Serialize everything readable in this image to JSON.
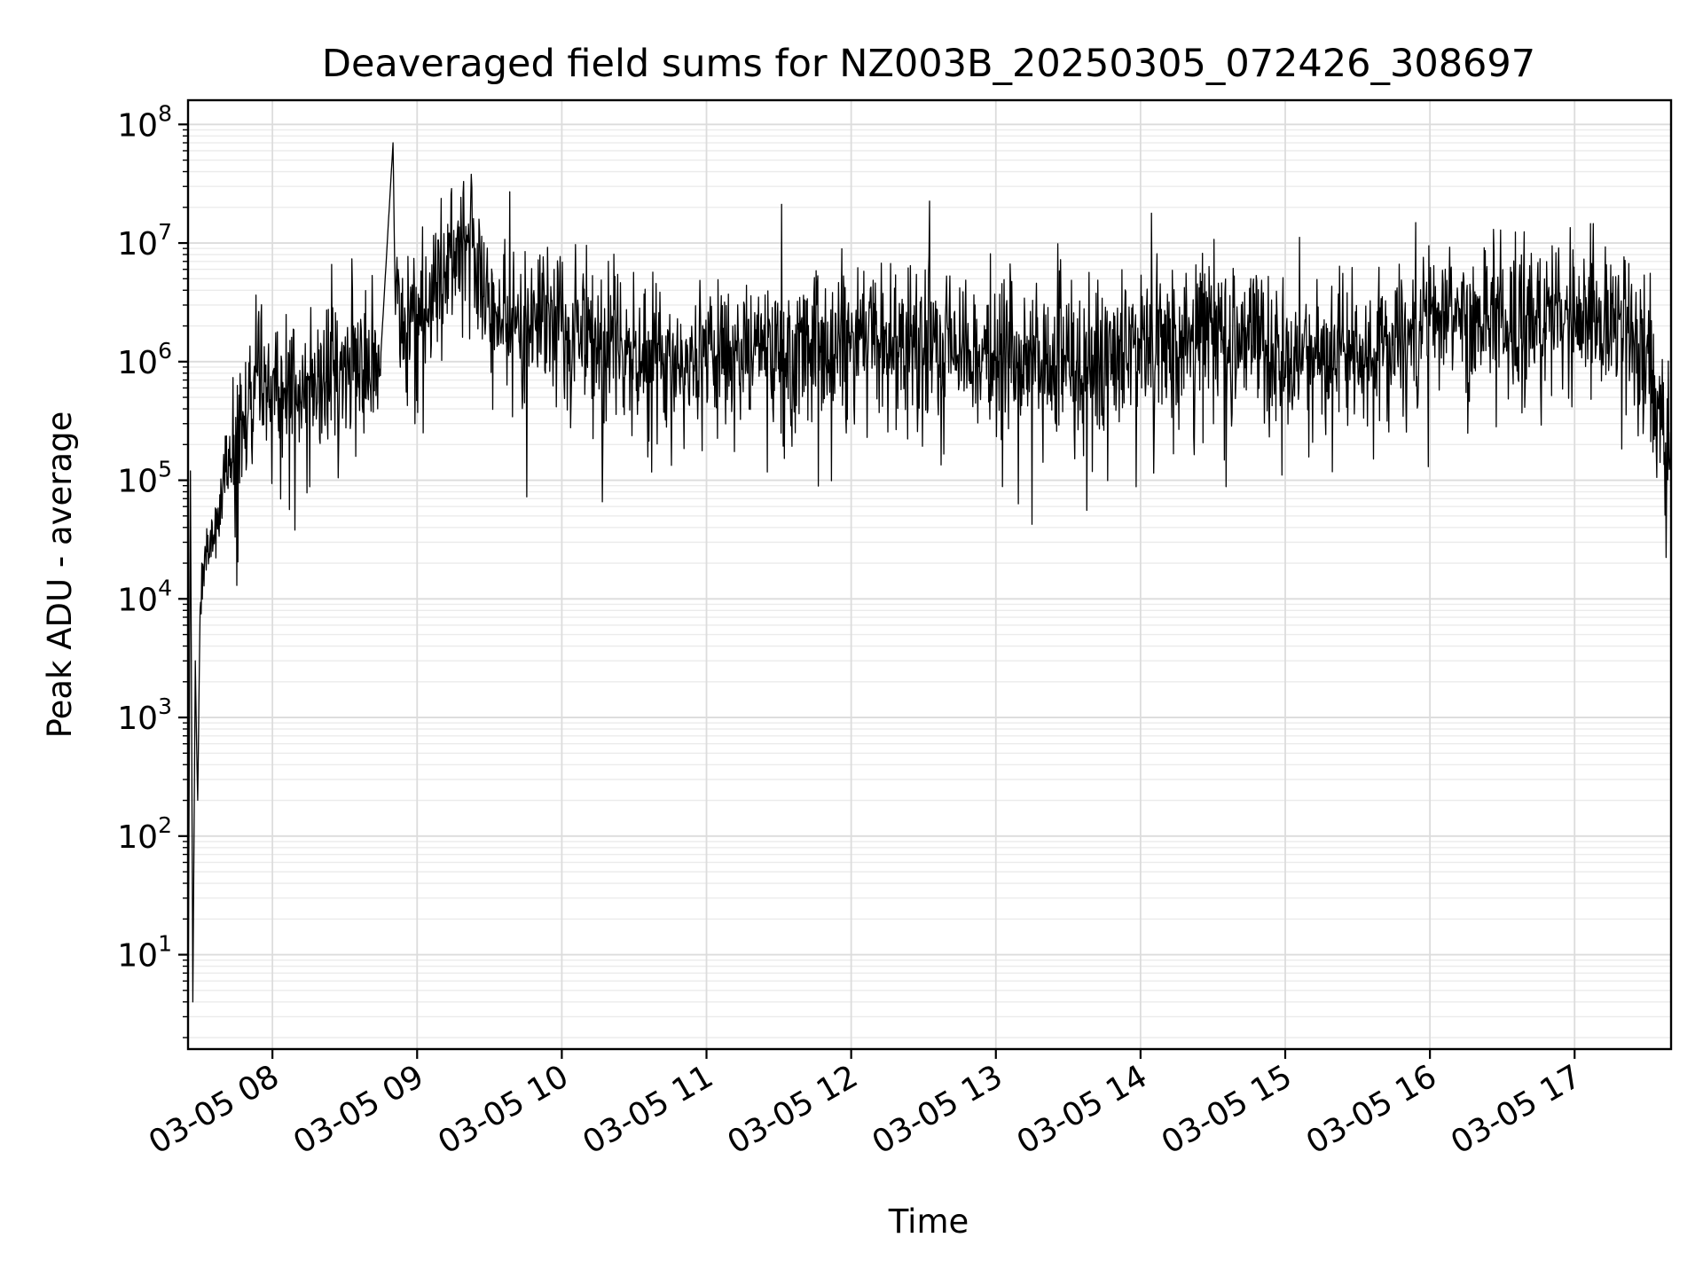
{
  "chart_data": {
    "type": "line",
    "title": "Deaveraged field sums for NZ003B_20250305_072426_308697",
    "xlabel": "Time",
    "ylabel": "Peak ADU - average",
    "yscale": "log",
    "ylim": [
      1.6,
      160000000.0
    ],
    "xlim": [
      "2025-03-05 07:25",
      "2025-03-05 17:40"
    ],
    "grid": true,
    "line_color": "#000000",
    "x_ticks": [
      "03-05 08",
      "03-05 09",
      "03-05 10",
      "03-05 11",
      "03-05 12",
      "03-05 13",
      "03-05 14",
      "03-05 15",
      "03-05 16",
      "03-05 17"
    ],
    "y_ticks": [
      {
        "base": "10",
        "exp": "1",
        "value": 10
      },
      {
        "base": "10",
        "exp": "2",
        "value": 100
      },
      {
        "base": "10",
        "exp": "3",
        "value": 1000
      },
      {
        "base": "10",
        "exp": "4",
        "value": 10000
      },
      {
        "base": "10",
        "exp": "5",
        "value": 100000
      },
      {
        "base": "10",
        "exp": "6",
        "value": 1000000
      },
      {
        "base": "10",
        "exp": "7",
        "value": 10000000
      },
      {
        "base": "10",
        "exp": "8",
        "value": 100000000
      }
    ],
    "series": [
      {
        "points": [
          {
            "x": "2025-03-05 07:25",
            "y": 2.0
          },
          {
            "x": "2025-03-05 07:26",
            "y": 120000
          },
          {
            "x": "2025-03-05 07:27",
            "y": 4
          },
          {
            "x": "2025-03-05 07:28",
            "y": 3000
          },
          {
            "x": "2025-03-05 07:29",
            "y": 200
          },
          {
            "x": "2025-03-05 07:30",
            "y": 8000
          },
          {
            "x": "2025-03-05 07:33",
            "y": 25000
          },
          {
            "x": "2025-03-05 07:37",
            "y": 50000
          },
          {
            "x": "2025-03-05 07:40",
            "y": 100000
          },
          {
            "x": "2025-03-05 07:45",
            "y": 200000
          },
          {
            "x": "2025-03-05 07:50",
            "y": 400000
          },
          {
            "x": "2025-03-05 07:55",
            "y": 500000
          },
          {
            "x": "2025-03-05 08:05",
            "y": 600000
          },
          {
            "x": "2025-03-05 08:15",
            "y": 700000
          },
          {
            "x": "2025-03-05 08:30",
            "y": 900000
          },
          {
            "x": "2025-03-05 08:45",
            "y": 1200000
          },
          {
            "x": "2025-03-05 08:50",
            "y": 70000000
          },
          {
            "x": "2025-03-05 08:51",
            "y": 2500000
          },
          {
            "x": "2025-03-05 09:00",
            "y": 2500000
          },
          {
            "x": "2025-03-05 09:22",
            "y": 13000000
          },
          {
            "x": "2025-03-05 09:30",
            "y": 2500000
          },
          {
            "x": "2025-03-05 10:00",
            "y": 1800000
          },
          {
            "x": "2025-03-05 10:30",
            "y": 1300000
          },
          {
            "x": "2025-03-05 11:00",
            "y": 1100000
          },
          {
            "x": "2025-03-05 11:30",
            "y": 1200000
          },
          {
            "x": "2025-03-05 12:00",
            "y": 1300000
          },
          {
            "x": "2025-03-05 12:30",
            "y": 1300000
          },
          {
            "x": "2025-03-05 13:00",
            "y": 1100000
          },
          {
            "x": "2025-03-05 13:30",
            "y": 1000000
          },
          {
            "x": "2025-03-05 14:00",
            "y": 1300000
          },
          {
            "x": "2025-03-05 14:30",
            "y": 1800000
          },
          {
            "x": "2025-03-05 15:00",
            "y": 1000000
          },
          {
            "x": "2025-03-05 15:30",
            "y": 1200000
          },
          {
            "x": "2025-03-05 16:00",
            "y": 2000000
          },
          {
            "x": "2025-03-05 16:30",
            "y": 2500000
          },
          {
            "x": "2025-03-05 17:00",
            "y": 2500000
          },
          {
            "x": "2025-03-05 17:25",
            "y": 1500000
          },
          {
            "x": "2025-03-05 17:35",
            "y": 400000
          },
          {
            "x": "2025-03-05 17:40",
            "y": 150000
          }
        ],
        "noise_decades": 0.3,
        "dip_probability": 0.06,
        "spike_probability": 0.04
      }
    ]
  }
}
